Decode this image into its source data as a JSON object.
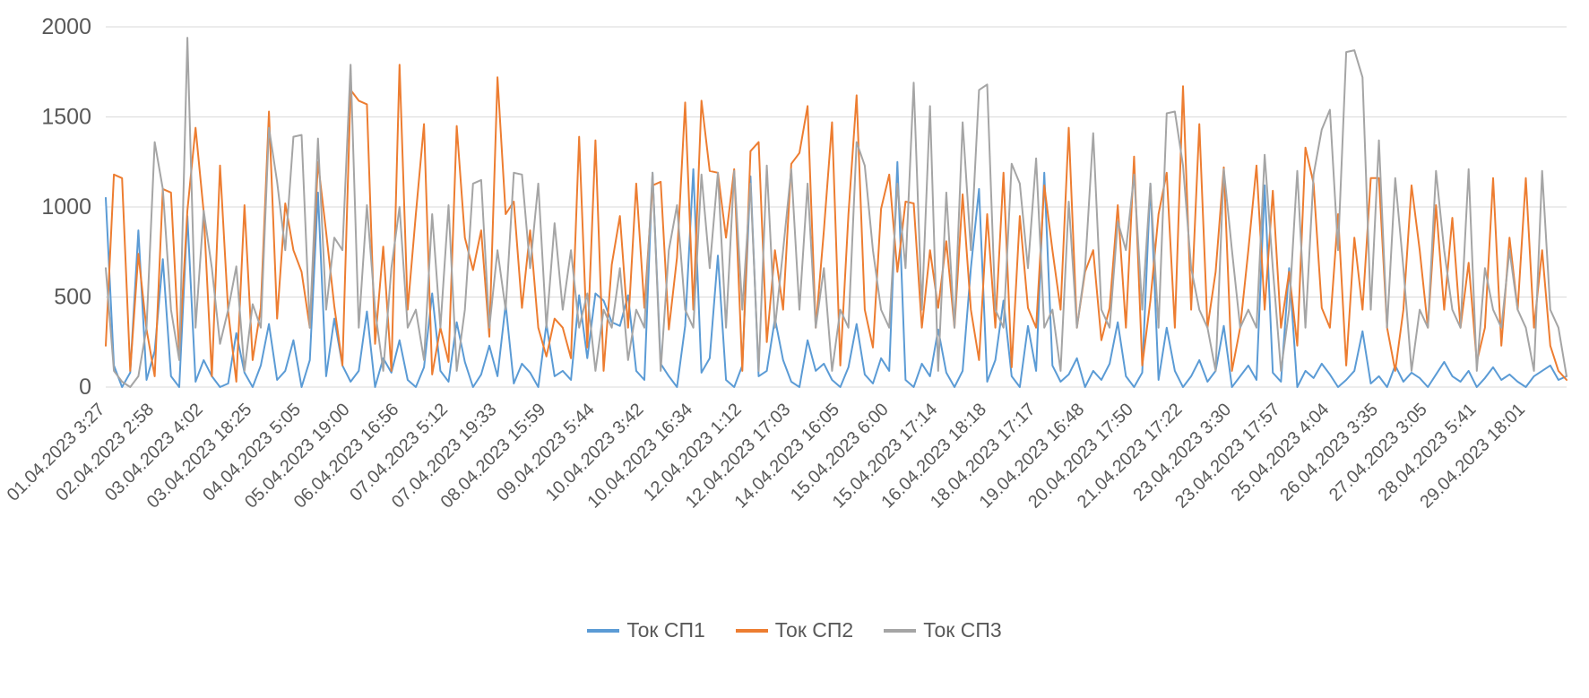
{
  "chart_data": {
    "type": "line",
    "title": "",
    "xlabel": "",
    "ylabel": "",
    "ylim": [
      0,
      2000
    ],
    "yticks": [
      0,
      500,
      1000,
      1500,
      2000
    ],
    "grid": true,
    "legend_position": "bottom",
    "points_per_tick": 6,
    "x_tick_labels": [
      "01.04.2023 3:27",
      "02.04.2023 2:58",
      "03.04.2023 4:02",
      "03.04.2023 18:25",
      "04.04.2023 5:05",
      "05.04.2023 19:00",
      "06.04.2023 16:56",
      "07.04.2023 5:12",
      "07.04.2023 19:33",
      "08.04.2023 15:59",
      "09.04.2023 5:44",
      "10.04.2023 3:42",
      "10.04.2023 16:34",
      "12.04.2023 1:12",
      "12.04.2023 17:03",
      "14.04.2023 16:05",
      "15.04.2023 6:00",
      "15.04.2023 17:14",
      "16.04.2023 18:18",
      "18.04.2023 17:17",
      "19.04.2023 16:48",
      "20.04.2023 17:50",
      "21.04.2023 17:22",
      "23.04.2023 3:30",
      "23.04.2023 17:57",
      "25.04.2023 4:04",
      "26.04.2023 3:35",
      "27.04.2023 3:05",
      "28.04.2023 5:41",
      "29.04.2023 18:01"
    ],
    "series": [
      {
        "name": "Ток СП1",
        "color": "#5B9BD5",
        "values": [
          1050,
          120,
          0,
          80,
          870,
          40,
          200,
          710,
          60,
          0,
          950,
          30,
          150,
          60,
          0,
          20,
          300,
          80,
          0,
          120,
          350,
          40,
          90,
          260,
          0,
          150,
          1080,
          60,
          380,
          120,
          30,
          90,
          420,
          0,
          160,
          80,
          260,
          40,
          0,
          110,
          520,
          90,
          30,
          360,
          140,
          0,
          70,
          230,
          60,
          460,
          20,
          130,
          80,
          0,
          350,
          60,
          90,
          40,
          510,
          160,
          520,
          480,
          360,
          340,
          510,
          90,
          40,
          1190,
          130,
          60,
          0,
          340,
          1210,
          80,
          160,
          730,
          40,
          0,
          120,
          1170,
          60,
          90,
          380,
          150,
          30,
          0,
          260,
          90,
          130,
          40,
          0,
          110,
          350,
          70,
          20,
          160,
          90,
          1250,
          40,
          0,
          130,
          60,
          320,
          80,
          0,
          90,
          660,
          1100,
          30,
          150,
          480,
          60,
          0,
          340,
          90,
          1190,
          120,
          30,
          70,
          160,
          0,
          90,
          40,
          130,
          360,
          60,
          0,
          80,
          1130,
          40,
          330,
          90,
          0,
          60,
          150,
          30,
          90,
          340,
          0,
          60,
          120,
          40,
          1120,
          80,
          30,
          660,
          0,
          90,
          50,
          130,
          70,
          0,
          40,
          90,
          310,
          20,
          60,
          0,
          120,
          30,
          80,
          50,
          0,
          70,
          140,
          60,
          30,
          90,
          0,
          50,
          110,
          40,
          70,
          30,
          0,
          60,
          90,
          120,
          40,
          60
        ]
      },
      {
        "name": "Ток СП2",
        "color": "#ED7D31",
        "values": [
          230,
          1180,
          1160,
          90,
          740,
          320,
          60,
          1100,
          1080,
          180,
          980,
          1440,
          970,
          60,
          1230,
          420,
          30,
          1010,
          150,
          440,
          1530,
          380,
          1020,
          760,
          640,
          330,
          1250,
          860,
          450,
          120,
          1650,
          1590,
          1570,
          240,
          780,
          90,
          1790,
          430,
          960,
          1460,
          70,
          330,
          140,
          1450,
          830,
          650,
          870,
          280,
          1720,
          960,
          1030,
          440,
          870,
          330,
          170,
          380,
          330,
          160,
          1390,
          220,
          1370,
          90,
          680,
          950,
          330,
          1130,
          440,
          1120,
          1140,
          320,
          720,
          1580,
          430,
          1590,
          1200,
          1190,
          830,
          1210,
          90,
          1310,
          1360,
          250,
          760,
          430,
          1240,
          1300,
          1560,
          330,
          870,
          1470,
          120,
          960,
          1620,
          430,
          220,
          990,
          1180,
          640,
          1030,
          1020,
          330,
          760,
          440,
          810,
          330,
          1070,
          430,
          150,
          960,
          330,
          1190,
          110,
          950,
          440,
          330,
          1120,
          760,
          430,
          1440,
          330,
          640,
          760,
          260,
          440,
          1010,
          330,
          1280,
          120,
          480,
          960,
          1190,
          330,
          1670,
          430,
          1460,
          330,
          640,
          1220,
          90,
          330,
          760,
          1230,
          430,
          1090,
          330,
          640,
          230,
          1330,
          1130,
          440,
          330,
          960,
          120,
          830,
          430,
          1160,
          1160,
          330,
          90,
          430,
          1120,
          760,
          330,
          1010,
          430,
          940,
          330,
          690,
          140,
          330,
          1160,
          230,
          830,
          430,
          1160,
          330,
          760,
          230,
          90,
          40
        ]
      },
      {
        "name": "Ток СП3",
        "color": "#A5A5A5",
        "values": [
          660,
          90,
          30,
          0,
          60,
          330,
          1360,
          1100,
          430,
          150,
          1940,
          330,
          980,
          660,
          240,
          430,
          670,
          90,
          460,
          330,
          1440,
          1140,
          760,
          1390,
          1400,
          330,
          1380,
          430,
          830,
          760,
          1790,
          330,
          1010,
          430,
          90,
          660,
          1000,
          330,
          430,
          150,
          960,
          330,
          1010,
          90,
          430,
          1130,
          1150,
          330,
          760,
          430,
          1190,
          1180,
          660,
          1130,
          330,
          910,
          430,
          760,
          330,
          520,
          90,
          430,
          330,
          660,
          150,
          430,
          330,
          1190,
          90,
          760,
          1010,
          430,
          330,
          1180,
          660,
          1190,
          330,
          1200,
          430,
          1130,
          90,
          1230,
          330,
          760,
          1210,
          430,
          1130,
          330,
          660,
          90,
          430,
          330,
          1360,
          1230,
          760,
          430,
          330,
          1130,
          660,
          1690,
          430,
          1560,
          90,
          1080,
          330,
          1470,
          760,
          1650,
          1680,
          430,
          330,
          1240,
          1130,
          660,
          1270,
          330,
          430,
          90,
          1030,
          330,
          660,
          1410,
          430,
          330,
          920,
          760,
          1180,
          430,
          1130,
          330,
          1520,
          1530,
          1230,
          660,
          430,
          330,
          90,
          1210,
          760,
          330,
          430,
          330,
          1290,
          660,
          90,
          430,
          1200,
          330,
          1180,
          1430,
          1540,
          760,
          1860,
          1870,
          1720,
          430,
          1370,
          330,
          1160,
          660,
          90,
          430,
          330,
          1200,
          760,
          430,
          330,
          1210,
          90,
          660,
          430,
          330,
          760,
          430,
          330,
          90,
          1200,
          430,
          330,
          60
        ]
      }
    ]
  }
}
